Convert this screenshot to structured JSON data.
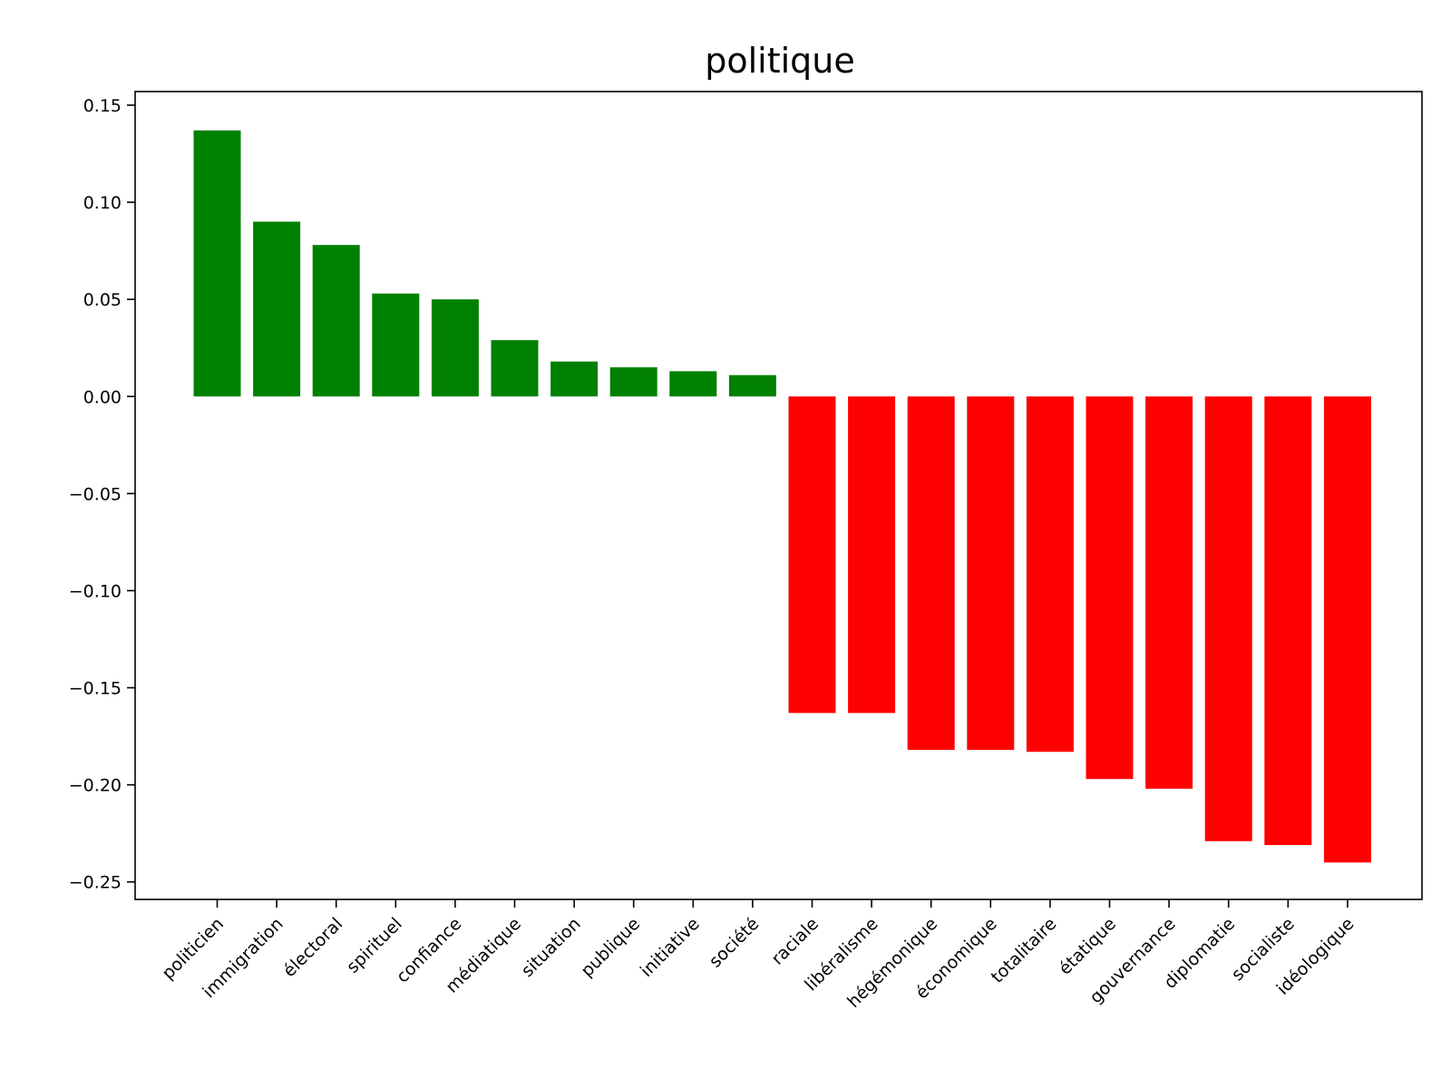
{
  "chart_data": {
    "type": "bar",
    "title": "politique",
    "xlabel": "",
    "ylabel": "",
    "ylim": [
      -0.259,
      0.157
    ],
    "yticks": [
      0.15,
      0.1,
      0.05,
      0.0,
      -0.05,
      -0.1,
      -0.15,
      -0.2,
      -0.25
    ],
    "ytick_labels": [
      "0.15",
      "0.10",
      "0.05",
      "0.00",
      "−0.05",
      "−0.10",
      "−0.15",
      "−0.20",
      "−0.25"
    ],
    "grid": false,
    "categories": [
      "politicien",
      "immigration",
      "électoral",
      "spirituel",
      "confiance",
      "médiatique",
      "situation",
      "publique",
      "initiative",
      "société",
      "raciale",
      "libéralisme",
      "hégémonique",
      "économique",
      "totalitaire",
      "étatique",
      "gouvernance",
      "diplomatie",
      "socialiste",
      "idéologique"
    ],
    "values": [
      0.137,
      0.09,
      0.078,
      0.053,
      0.05,
      0.029,
      0.018,
      0.015,
      0.013,
      0.011,
      -0.163,
      -0.163,
      -0.182,
      -0.182,
      -0.183,
      -0.197,
      -0.202,
      -0.229,
      -0.231,
      -0.24
    ],
    "colors": {
      "positive": "#008000",
      "negative": "#ff0000"
    }
  }
}
